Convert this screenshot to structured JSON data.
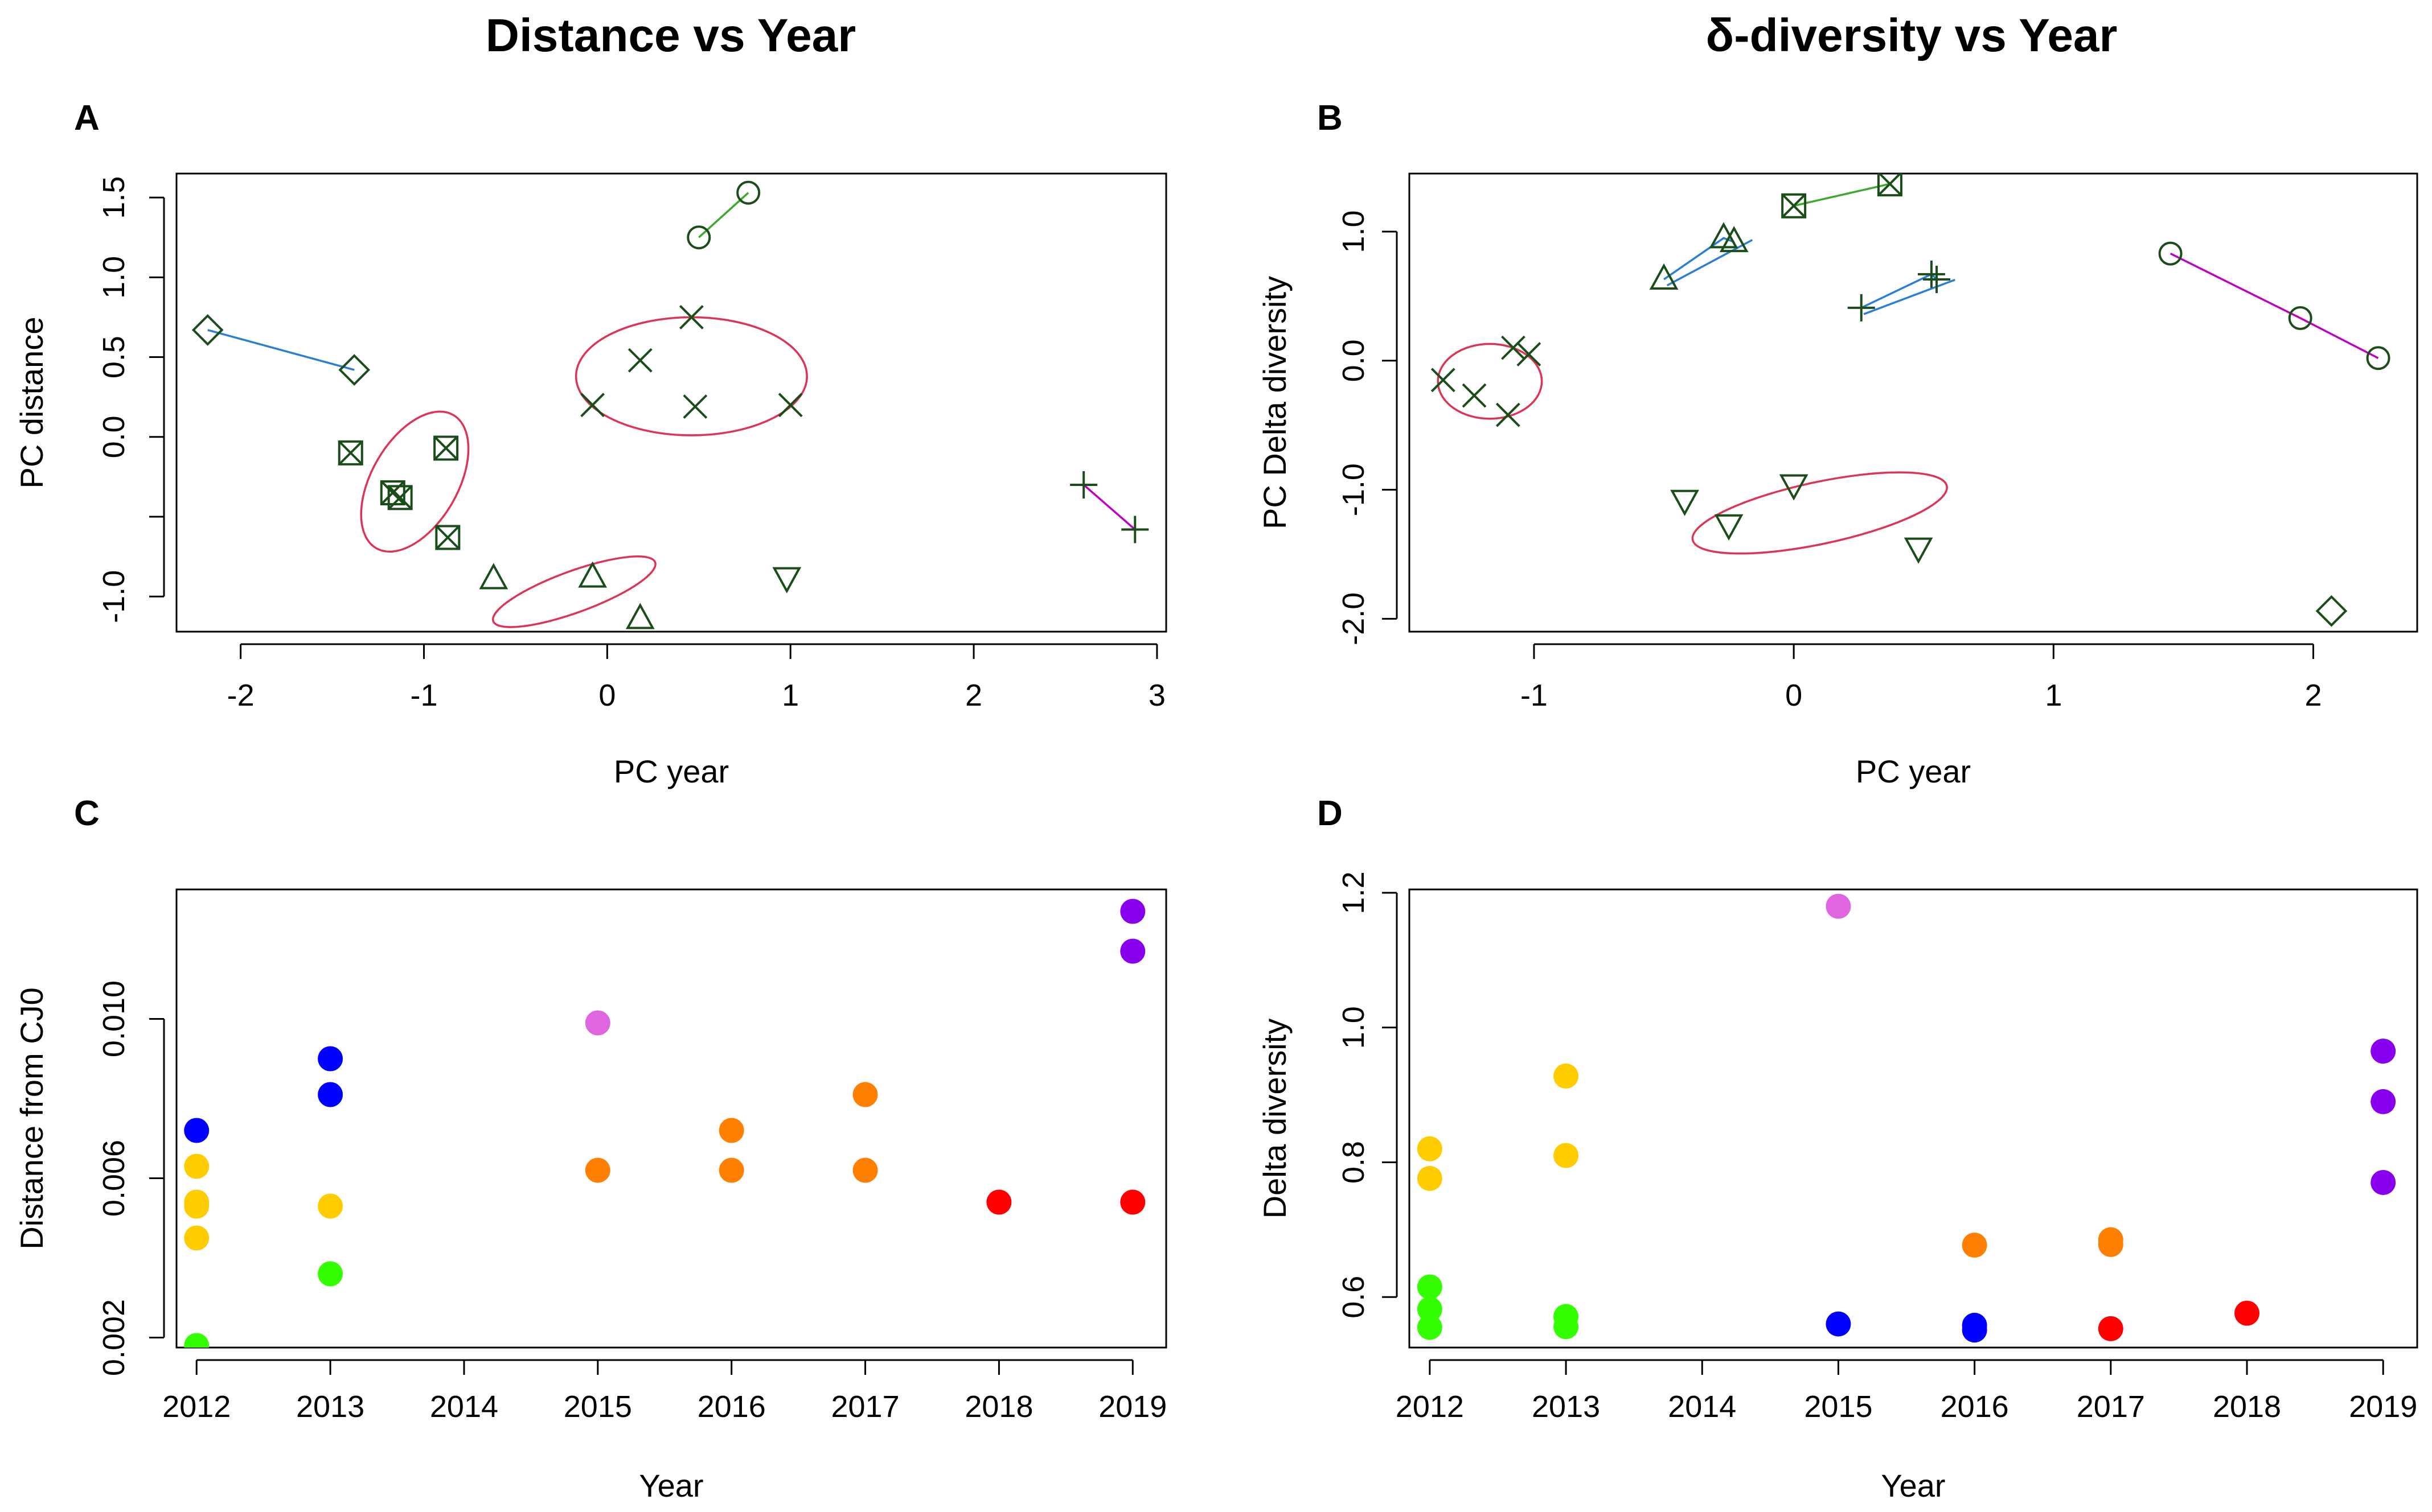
{
  "titles": {
    "left": "Distance vs Year",
    "right": "δ-diversity vs Year"
  },
  "chart_data": [
    {
      "panel": "A",
      "type": "scatter",
      "title": "",
      "xlabel": "PC year",
      "ylabel": "PC distance",
      "xlim": [
        -2.35,
        3.05
      ],
      "ylim": [
        -1.22,
        1.65
      ],
      "xticks": [
        -2,
        -1,
        0,
        1,
        2,
        3
      ],
      "xtick_labels": [
        "-2",
        "-1",
        "0",
        "1",
        "2",
        "3"
      ],
      "yticks": [
        -1.0,
        -0.5,
        0.0,
        0.5,
        1.0,
        1.5
      ],
      "ytick_labels": [
        "-1.0",
        "",
        "0.0",
        "0.5",
        "1.0",
        "1.5"
      ],
      "marker_color": "#1a4d1a",
      "groups": [
        {
          "marker": "circle",
          "points": [
            [
              0.5,
              1.25
            ],
            [
              0.77,
              1.53
            ]
          ],
          "line_color": "#3aaa2a"
        },
        {
          "marker": "diamond",
          "points": [
            [
              -2.18,
              0.67
            ],
            [
              -1.38,
              0.42
            ]
          ],
          "line_color": "#2a7fd4"
        },
        {
          "marker": "plus",
          "points": [
            [
              2.6,
              -0.3
            ],
            [
              2.88,
              -0.58
            ]
          ],
          "line_color": "#c000c0"
        },
        {
          "marker": "x",
          "points": [
            [
              -0.08,
              0.2
            ],
            [
              0.18,
              0.48
            ],
            [
              0.46,
              0.75
            ],
            [
              0.48,
              0.19
            ],
            [
              1.0,
              0.2
            ]
          ]
        },
        {
          "marker": "boxx",
          "points": [
            [
              -1.4,
              -0.1
            ],
            [
              -1.17,
              -0.35
            ],
            [
              -1.13,
              -0.38
            ],
            [
              -0.88,
              -0.07
            ],
            [
              -0.87,
              -0.63
            ]
          ]
        },
        {
          "marker": "triangle",
          "points": [
            [
              -0.62,
              -0.89
            ],
            [
              -0.08,
              -0.88
            ],
            [
              0.18,
              -1.14
            ]
          ]
        },
        {
          "marker": "triangle-down",
          "points": [
            [
              0.98,
              -0.88
            ]
          ]
        }
      ],
      "ellipses": [
        {
          "cx": 0.46,
          "cy": 0.38,
          "rx": 0.63,
          "ry": 0.37,
          "angle": 0
        },
        {
          "cx": -1.05,
          "cy": -0.28,
          "rx": 0.42,
          "ry": 0.27,
          "angle": -60
        },
        {
          "cx": -0.18,
          "cy": -0.97,
          "rx": 0.47,
          "ry": 0.13,
          "angle": -20
        }
      ]
    },
    {
      "panel": "B",
      "type": "scatter",
      "title": "",
      "xlabel": "PC year",
      "ylabel": "PC Delta diversity",
      "xlim": [
        -1.48,
        2.4
      ],
      "ylim": [
        -2.1,
        1.45
      ],
      "xticks": [
        -1,
        0,
        1,
        2
      ],
      "xtick_labels": [
        "-1",
        "0",
        "1",
        "2"
      ],
      "yticks": [
        -2.0,
        -1.0,
        0.0,
        1.0
      ],
      "ytick_labels": [
        "-2.0",
        "-1.0",
        "0.0",
        "1.0"
      ],
      "marker_color": "#1a4d1a",
      "groups": [
        {
          "marker": "circle",
          "points": [
            [
              1.45,
              0.83
            ],
            [
              1.95,
              0.33
            ],
            [
              2.25,
              0.02
            ]
          ],
          "line_color": "#c000c0"
        },
        {
          "marker": "boxx",
          "points": [
            [
              0.0,
              1.2
            ],
            [
              0.37,
              1.37
            ]
          ],
          "line_color": "#3aaa2a"
        },
        {
          "marker": "triangle",
          "points": [
            [
              -0.5,
              0.63
            ],
            [
              -0.27,
              0.95
            ],
            [
              -0.23,
              0.92
            ]
          ],
          "line_color": "#2a7fd4",
          "arrow": true
        },
        {
          "marker": "plus",
          "points": [
            [
              0.26,
              0.41
            ],
            [
              0.53,
              0.67
            ],
            [
              0.55,
              0.63
            ]
          ],
          "line_color": "#2a7fd4",
          "arrow": true
        },
        {
          "marker": "x",
          "points": [
            [
              -1.35,
              -0.15
            ],
            [
              -1.23,
              -0.27
            ],
            [
              -1.1,
              -0.42
            ],
            [
              -1.08,
              0.1
            ],
            [
              -1.02,
              0.05
            ]
          ]
        },
        {
          "marker": "triangle-down",
          "points": [
            [
              -0.42,
              -1.08
            ],
            [
              -0.25,
              -1.27
            ],
            [
              0.0,
              -0.96
            ],
            [
              0.48,
              -1.45
            ]
          ]
        },
        {
          "marker": "diamond",
          "points": [
            [
              2.07,
              -1.94
            ]
          ]
        }
      ],
      "ellipses": [
        {
          "cx": -1.17,
          "cy": -0.16,
          "rx": 0.2,
          "ry": 0.29,
          "angle": 0
        },
        {
          "cx": 0.1,
          "cy": -1.18,
          "rx": 0.5,
          "ry": 0.24,
          "angle": -12
        }
      ]
    },
    {
      "panel": "C",
      "type": "scatter",
      "title": "",
      "xlabel": "Year",
      "ylabel": "Distance from CJ0",
      "xlim": [
        2011.85,
        2019.25
      ],
      "ylim": [
        0.00175,
        0.01325
      ],
      "xticks": [
        2012,
        2013,
        2014,
        2015,
        2016,
        2017,
        2018,
        2019
      ],
      "xtick_labels": [
        "2012",
        "2013",
        "2014",
        "2015",
        "2016",
        "2017",
        "2018",
        "2019"
      ],
      "yticks": [
        0.002,
        0.006,
        0.01
      ],
      "ytick_labels": [
        "0.002",
        "0.006",
        "0.010"
      ],
      "points": [
        {
          "x": 2012,
          "y": 0.0072,
          "color": "#0000ff"
        },
        {
          "x": 2012,
          "y": 0.0063,
          "color": "#ffcc00"
        },
        {
          "x": 2012,
          "y": 0.0054,
          "color": "#ffcc00"
        },
        {
          "x": 2012,
          "y": 0.0053,
          "color": "#ffcc00"
        },
        {
          "x": 2012,
          "y": 0.0045,
          "color": "#ffcc00"
        },
        {
          "x": 2012,
          "y": 0.0018,
          "color": "#33ff00"
        },
        {
          "x": 2013,
          "y": 0.009,
          "color": "#0000ff"
        },
        {
          "x": 2013,
          "y": 0.0081,
          "color": "#0000ff"
        },
        {
          "x": 2013,
          "y": 0.0053,
          "color": "#ffcc00"
        },
        {
          "x": 2013,
          "y": 0.0036,
          "color": "#33ff00"
        },
        {
          "x": 2015,
          "y": 0.0099,
          "color": "#e066e0"
        },
        {
          "x": 2015,
          "y": 0.0062,
          "color": "#ff8000"
        },
        {
          "x": 2016,
          "y": 0.0072,
          "color": "#ff8000"
        },
        {
          "x": 2016,
          "y": 0.0062,
          "color": "#ff8000"
        },
        {
          "x": 2017,
          "y": 0.0081,
          "color": "#ff8000"
        },
        {
          "x": 2017,
          "y": 0.0062,
          "color": "#ff8000"
        },
        {
          "x": 2018,
          "y": 0.0054,
          "color": "#ff0000"
        },
        {
          "x": 2019,
          "y": 0.0127,
          "color": "#8800ee"
        },
        {
          "x": 2019,
          "y": 0.0117,
          "color": "#8800ee"
        },
        {
          "x": 2019,
          "y": 0.0054,
          "color": "#ff0000"
        }
      ]
    },
    {
      "panel": "D",
      "type": "scatter",
      "title": "",
      "xlabel": "Year",
      "ylabel": "Delta diversity",
      "xlim": [
        2011.85,
        2019.25
      ],
      "ylim": [
        0.525,
        1.205
      ],
      "xticks": [
        2012,
        2013,
        2014,
        2015,
        2016,
        2017,
        2018,
        2019
      ],
      "xtick_labels": [
        "2012",
        "2013",
        "2014",
        "2015",
        "2016",
        "2017",
        "2018",
        "2019"
      ],
      "yticks": [
        0.6,
        0.8,
        1.0,
        1.2
      ],
      "ytick_labels": [
        "0.6",
        "0.8",
        "1.0",
        "1.2"
      ],
      "points": [
        {
          "x": 2012,
          "y": 0.82,
          "color": "#ffcc00"
        },
        {
          "x": 2012,
          "y": 0.776,
          "color": "#ffcc00"
        },
        {
          "x": 2012,
          "y": 0.615,
          "color": "#33ff00"
        },
        {
          "x": 2012,
          "y": 0.582,
          "color": "#33ff00"
        },
        {
          "x": 2012,
          "y": 0.555,
          "color": "#33ff00"
        },
        {
          "x": 2013,
          "y": 0.928,
          "color": "#ffcc00"
        },
        {
          "x": 2013,
          "y": 0.81,
          "color": "#ffcc00"
        },
        {
          "x": 2013,
          "y": 0.571,
          "color": "#33ff00"
        },
        {
          "x": 2013,
          "y": 0.556,
          "color": "#33ff00"
        },
        {
          "x": 2015,
          "y": 1.18,
          "color": "#e066e0"
        },
        {
          "x": 2015,
          "y": 0.56,
          "color": "#0000ff"
        },
        {
          "x": 2016,
          "y": 0.677,
          "color": "#ff8000"
        },
        {
          "x": 2016,
          "y": 0.558,
          "color": "#0000ff"
        },
        {
          "x": 2016,
          "y": 0.551,
          "color": "#0000ff"
        },
        {
          "x": 2017,
          "y": 0.685,
          "color": "#ff8000"
        },
        {
          "x": 2017,
          "y": 0.678,
          "color": "#ff8000"
        },
        {
          "x": 2017,
          "y": 0.553,
          "color": "#ff0000"
        },
        {
          "x": 2018,
          "y": 0.576,
          "color": "#ff0000"
        },
        {
          "x": 2019,
          "y": 0.965,
          "color": "#8800ee"
        },
        {
          "x": 2019,
          "y": 0.89,
          "color": "#8800ee"
        },
        {
          "x": 2019,
          "y": 0.77,
          "color": "#8800ee"
        }
      ]
    }
  ]
}
